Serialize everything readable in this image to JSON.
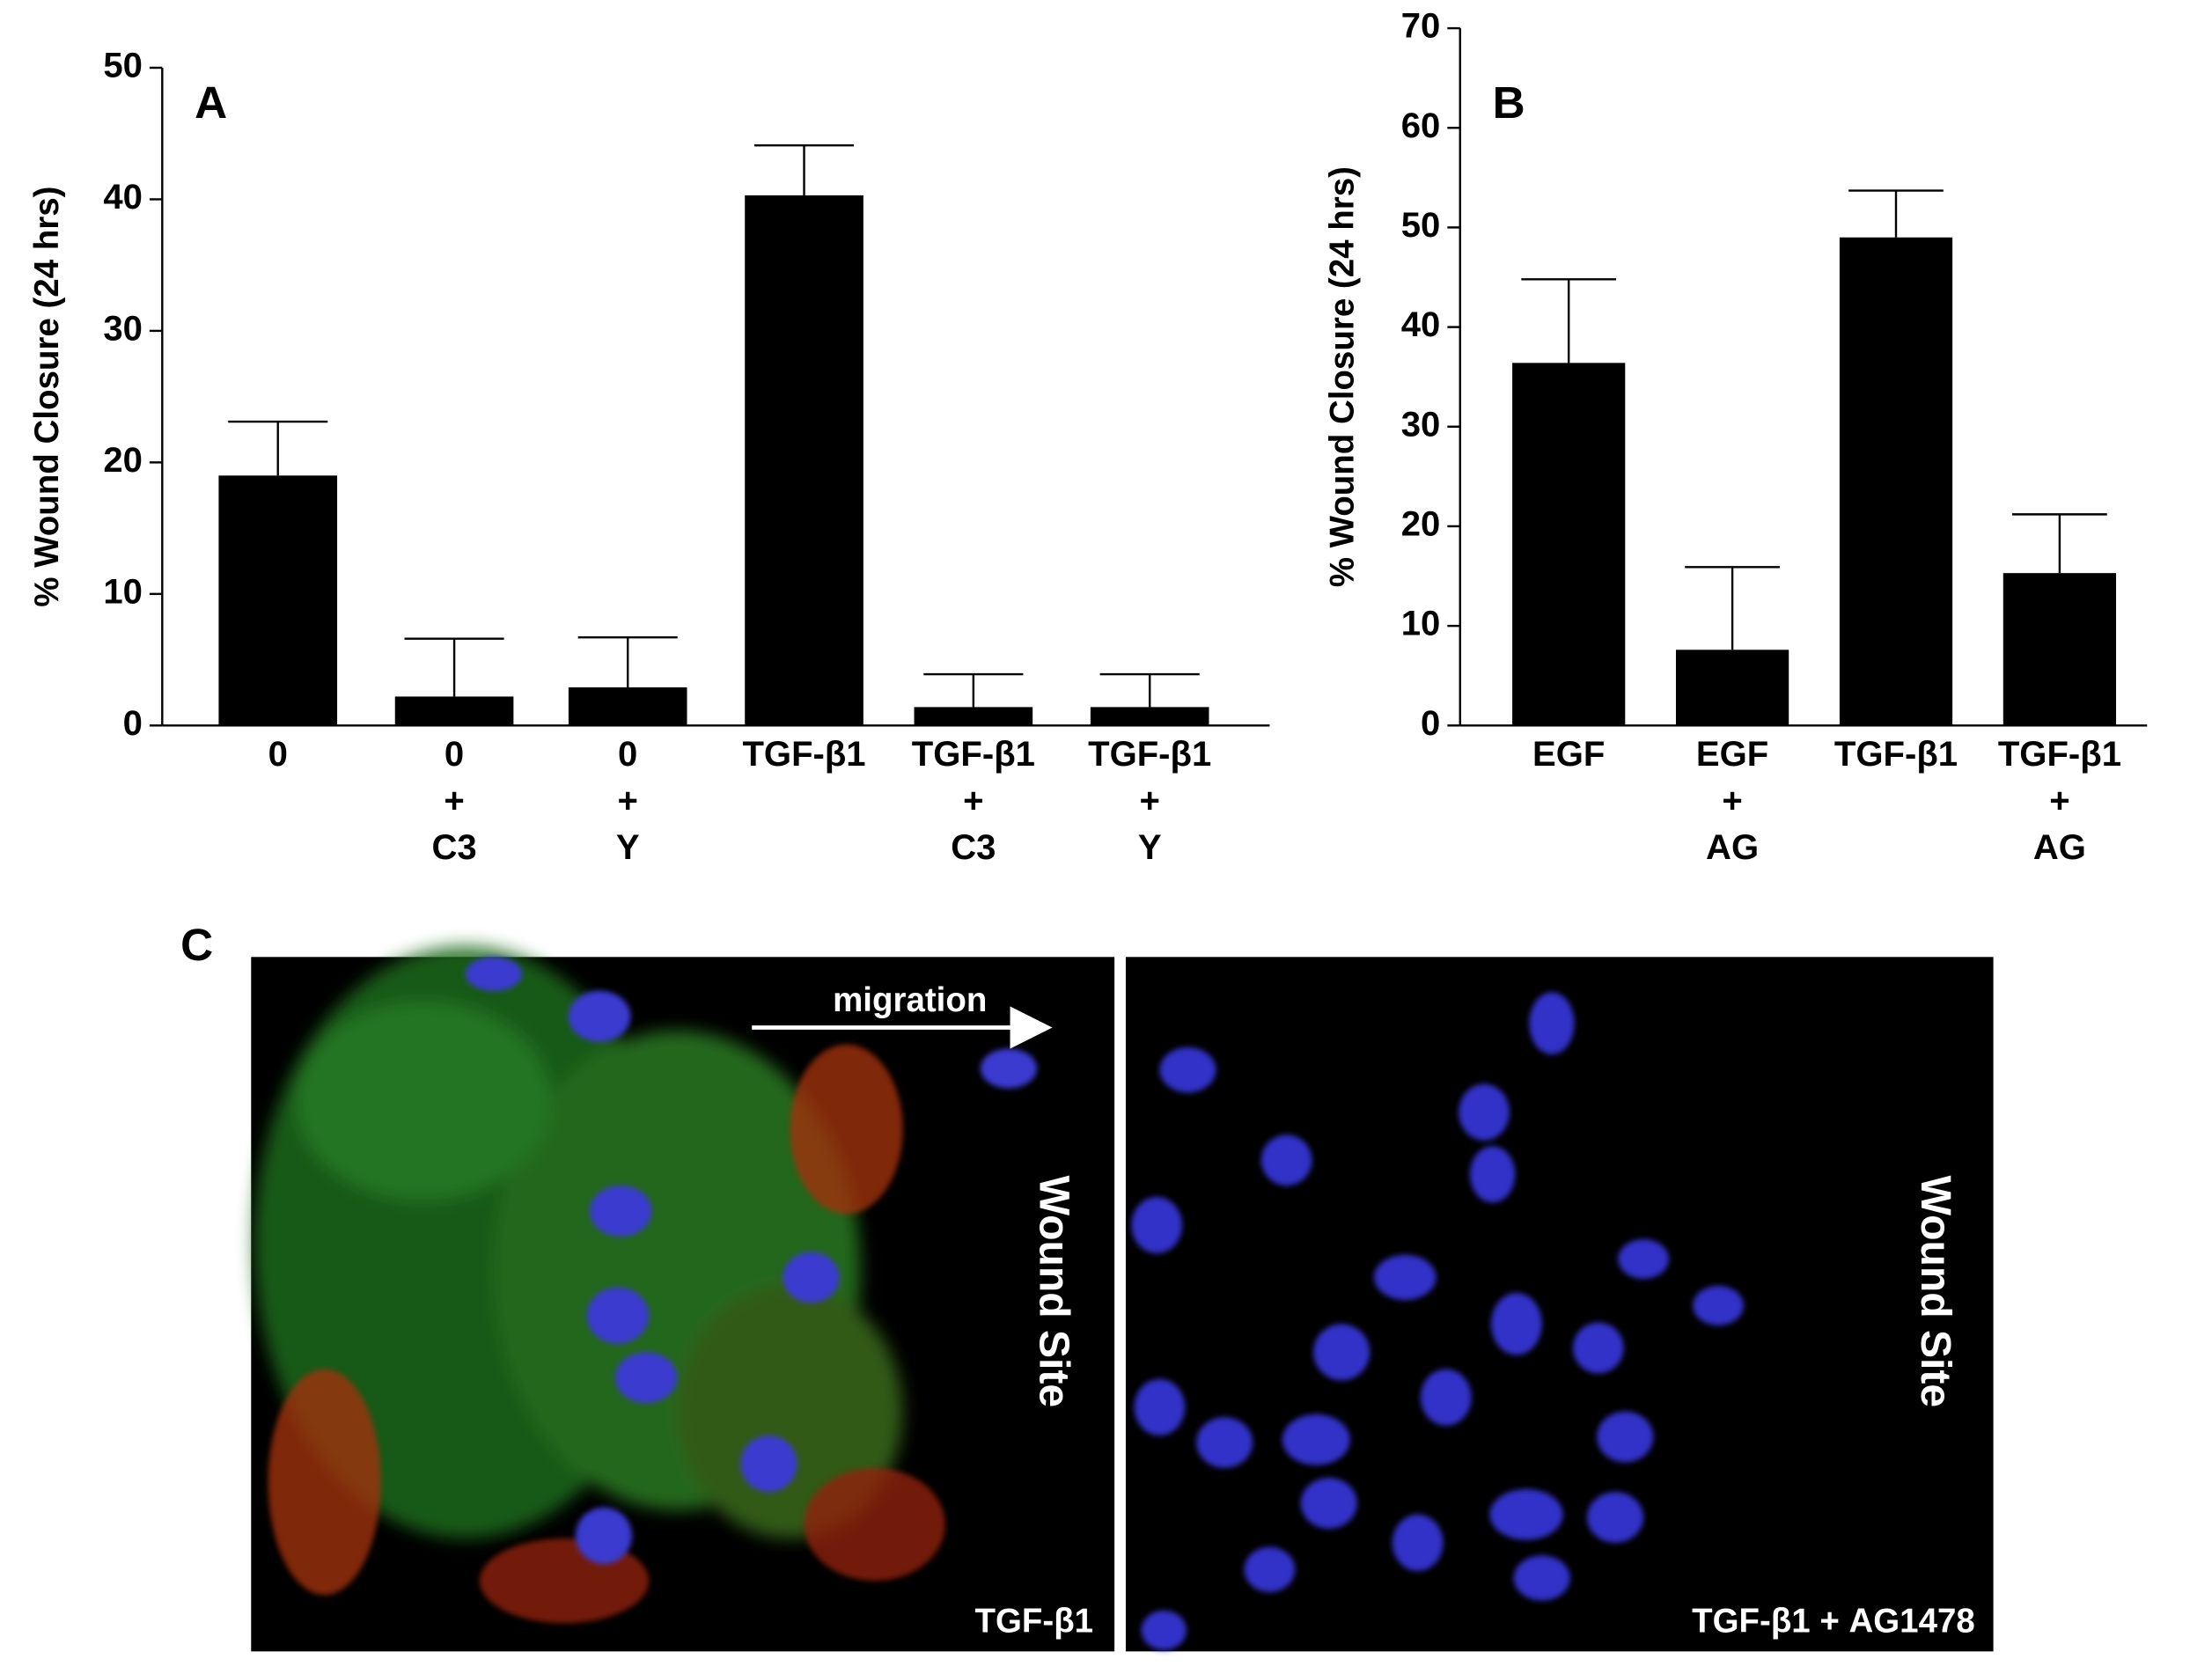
{
  "chart_data": [
    {
      "type": "bar",
      "title": "A",
      "y_label": "% Wound Closure (24 hrs)",
      "categories": [
        [
          "0"
        ],
        [
          "0",
          "+",
          "C3"
        ],
        [
          "0",
          "+",
          "Y"
        ],
        [
          "TGF-β1"
        ],
        [
          "TGF-β1",
          "+",
          "C3"
        ],
        [
          "TGF-β1",
          "+",
          "Y"
        ]
      ],
      "values": [
        19.0,
        2.2,
        2.9,
        40.3,
        1.4,
        1.4
      ],
      "errors": [
        4.1,
        4.4,
        3.8,
        3.8,
        2.5,
        2.5
      ],
      "color": "#000000",
      "ylim": [
        0,
        50
      ],
      "yticks": [
        0,
        10,
        20,
        30,
        40,
        50
      ]
    },
    {
      "type": "bar",
      "title": "B",
      "y_label": "% Wound Closure (24 hrs)",
      "categories": [
        [
          "EGF"
        ],
        [
          "EGF",
          "+",
          "AG"
        ],
        [
          "TGF-β1"
        ],
        [
          "TGF-β1",
          "+",
          "AG"
        ]
      ],
      "values": [
        36.4,
        7.6,
        49.0,
        15.3
      ],
      "errors": [
        8.4,
        8.3,
        4.7,
        5.9
      ],
      "color": "#000000",
      "ylim": [
        0,
        70
      ],
      "yticks": [
        0,
        10,
        20,
        30,
        40,
        50,
        60,
        70
      ]
    }
  ],
  "panel_c": {
    "label": "C",
    "arrow_label": "migration",
    "images": [
      {
        "side_label": "Wound Site",
        "caption": "TGF-β1"
      },
      {
        "side_label": "Wound Site",
        "caption": "TGF-β1 + AG1478"
      }
    ]
  }
}
